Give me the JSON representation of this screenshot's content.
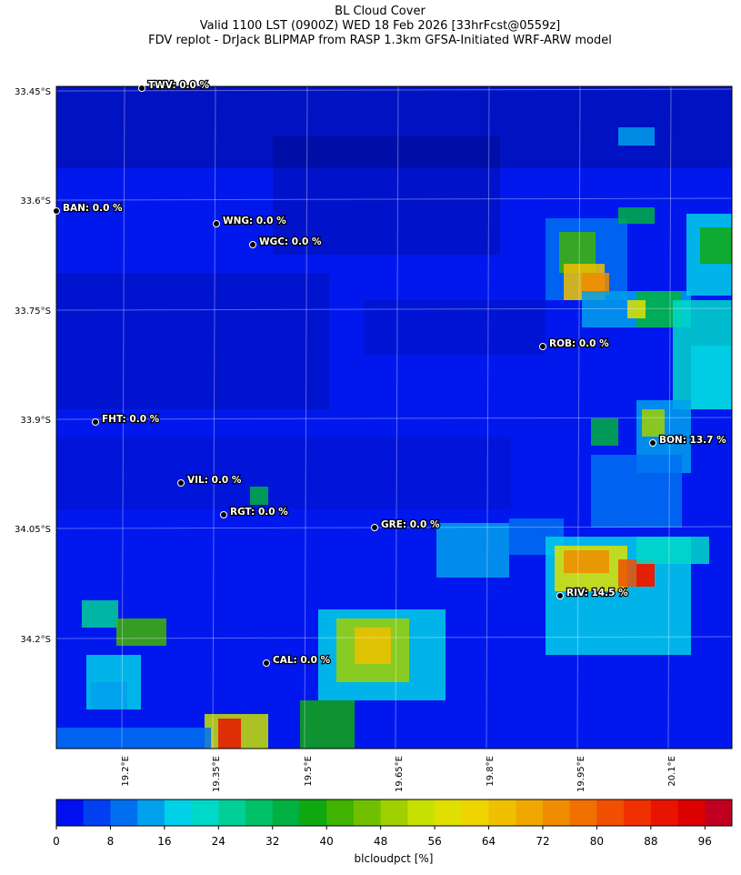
{
  "header": {
    "title": "BL Cloud Cover",
    "line2": "Valid 1100 LST (0900Z) WED 18 Feb 2026 [33hrFcst@0559z]",
    "line3": "FDV replot - DrJack BLIPMAP from RASP 1.3km GFSA-Initiated WRF-ARW model"
  },
  "map": {
    "background": "#0018ee",
    "lat_ticks": [
      "33.45°S",
      "33.6°S",
      "33.75°S",
      "33.9°S",
      "34.05°S",
      "34.2°S"
    ],
    "lon_ticks": [
      "19.2°E",
      "19.35°E",
      "19.5°E",
      "19.65°E",
      "19.8°E",
      "19.95°E",
      "20.1°E"
    ],
    "stations": [
      "TWV: 0.0 %",
      "BAN: 0.0 %",
      "WNG: 0.0 %",
      "WGC: 0.0 %",
      "ROB: 0.0 %",
      "FHT: 0.0 %",
      "BON: 13.7 %",
      "VIL: 0.0 %",
      "RGT: 0.0 %",
      "GRE: 0.0 %",
      "RIV: 14.5 %",
      "CAL: 0.0 %"
    ]
  },
  "colorbar": {
    "label": "blcloudpct [%]",
    "range": [
      0,
      100
    ],
    "ticks": [
      0,
      8,
      16,
      24,
      32,
      40,
      48,
      56,
      64,
      72,
      80,
      88,
      96
    ],
    "colors": [
      "#0010f0",
      "#0040f0",
      "#0070f0",
      "#00a0ec",
      "#00d0e8",
      "#00d8c8",
      "#00d098",
      "#00c068",
      "#00b040",
      "#10a810",
      "#40b400",
      "#70c000",
      "#a0d000",
      "#c8e000",
      "#e0e000",
      "#f0d400",
      "#f0c000",
      "#f0a800",
      "#f08c00",
      "#f07000",
      "#f05000",
      "#f03000",
      "#e81400",
      "#dc0000",
      "#c00020"
    ]
  }
}
